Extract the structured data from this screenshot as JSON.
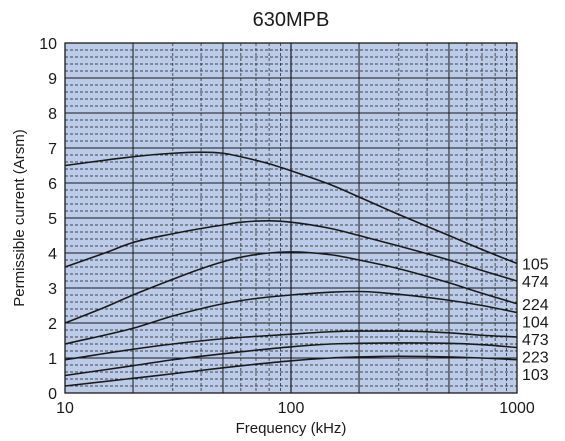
{
  "chart_data": {
    "type": "line",
    "title": "630MPB",
    "xlabel": "Frequency (kHz)",
    "ylabel": "Permissible current (Arsm)",
    "x_scale": "log",
    "xlim": [
      10,
      1000
    ],
    "ylim": [
      0,
      10
    ],
    "x_ticks": [
      "10",
      "100",
      "1000"
    ],
    "y_ticks": [
      "0",
      "1",
      "2",
      "3",
      "4",
      "5",
      "6",
      "7",
      "8",
      "9",
      "10"
    ],
    "grid": true,
    "background_color": "#bccbe8",
    "grid_color": "#1a1a1a",
    "line_color": "#1a1a1a",
    "legend": "labels at right end of curves",
    "series": [
      {
        "name": "105",
        "x": [
          10,
          20,
          30,
          40,
          50,
          60,
          80,
          100,
          150,
          200,
          300,
          500,
          700,
          1000
        ],
        "values": [
          6.5,
          6.75,
          6.85,
          6.88,
          6.85,
          6.75,
          6.55,
          6.35,
          5.95,
          5.6,
          5.1,
          4.5,
          4.1,
          3.7
        ]
      },
      {
        "name": "474",
        "x": [
          10,
          15,
          20,
          30,
          40,
          50,
          60,
          80,
          100,
          150,
          200,
          300,
          500,
          700,
          1000
        ],
        "values": [
          3.6,
          4.0,
          4.3,
          4.55,
          4.7,
          4.8,
          4.88,
          4.92,
          4.88,
          4.7,
          4.5,
          4.2,
          3.8,
          3.5,
          3.2
        ]
      },
      {
        "name": "224",
        "x": [
          10,
          15,
          20,
          30,
          40,
          50,
          60,
          80,
          100,
          150,
          200,
          300,
          500,
          700,
          1000
        ],
        "values": [
          2.0,
          2.45,
          2.8,
          3.25,
          3.55,
          3.75,
          3.88,
          4.0,
          4.03,
          3.95,
          3.8,
          3.55,
          3.15,
          2.85,
          2.55
        ]
      },
      {
        "name": "104",
        "x": [
          10,
          20,
          30,
          50,
          70,
          100,
          150,
          200,
          300,
          500,
          700,
          1000
        ],
        "values": [
          1.4,
          1.85,
          2.2,
          2.55,
          2.7,
          2.8,
          2.88,
          2.9,
          2.82,
          2.65,
          2.5,
          2.3
        ]
      },
      {
        "name": "473",
        "x": [
          10,
          20,
          30,
          50,
          100,
          150,
          200,
          300,
          500,
          700,
          1000
        ],
        "values": [
          0.95,
          1.25,
          1.4,
          1.55,
          1.68,
          1.75,
          1.77,
          1.77,
          1.72,
          1.65,
          1.6
        ]
      },
      {
        "name": "223",
        "x": [
          10,
          20,
          30,
          50,
          100,
          150,
          200,
          300,
          500,
          700,
          1000
        ],
        "values": [
          0.5,
          0.78,
          0.95,
          1.12,
          1.32,
          1.4,
          1.42,
          1.43,
          1.42,
          1.38,
          1.3
        ]
      },
      {
        "name": "103",
        "x": [
          10,
          20,
          30,
          50,
          100,
          150,
          200,
          300,
          500,
          700,
          1000
        ],
        "values": [
          0.2,
          0.42,
          0.55,
          0.72,
          0.92,
          1.0,
          1.03,
          1.05,
          1.03,
          1.0,
          0.95
        ]
      }
    ]
  }
}
